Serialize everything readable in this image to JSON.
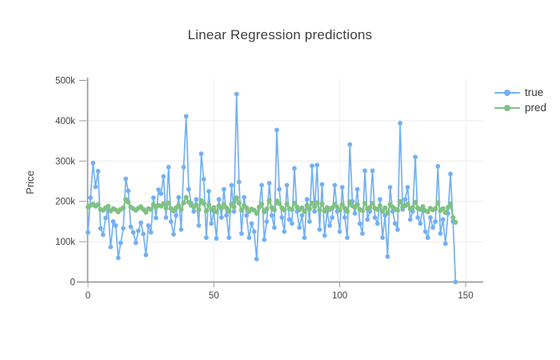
{
  "title": "Linear Regression predictions",
  "legend": {
    "items": [
      {
        "label": "true",
        "color": "#74b0f3"
      },
      {
        "label": "pred",
        "color": "#80c183"
      }
    ]
  },
  "chart_data": {
    "type": "line",
    "title": "Linear Regression predictions",
    "xlabel": "",
    "ylabel": "Price",
    "x_is_index": true,
    "n_points": 147,
    "xlim": [
      -2,
      157
    ],
    "ylim": [
      0,
      505000
    ],
    "values_unit": "thousands",
    "xticks": [
      0,
      50,
      100,
      150
    ],
    "ytick_values_thousands": [
      0,
      100,
      200,
      300,
      400,
      500
    ],
    "ytick_labels": [
      "0",
      "100k",
      "200k",
      "300k",
      "400k",
      "500k"
    ],
    "grid": true,
    "legend_position": "right",
    "markers": true,
    "series": [
      {
        "name": "true",
        "color": "#74b0f3",
        "values_thousands": [
          123,
          209,
          295,
          236,
          275,
          133,
          117,
          159,
          176,
          87,
          150,
          140,
          60,
          97,
          133,
          256,
          226,
          137,
          123,
          97,
          127,
          147,
          119,
          67,
          140,
          123,
          209,
          159,
          229,
          219,
          262,
          160,
          285,
          150,
          118,
          165,
          210,
          130,
          285,
          411,
          230,
          195,
          175,
          205,
          140,
          318,
          255,
          110,
          225,
          145,
          175,
          108,
          205,
          160,
          230,
          165,
          110,
          240,
          175,
          466,
          248,
          120,
          210,
          165,
          110,
          145,
          125,
          57,
          185,
          240,
          105,
          150,
          245,
          165,
          135,
          377,
          230,
          160,
          125,
          240,
          155,
          145,
          282,
          175,
          135,
          165,
          110,
          205,
          150,
          288,
          175,
          290,
          130,
          242,
          115,
          175,
          140,
          160,
          240,
          175,
          125,
          235,
          160,
          110,
          341,
          200,
          170,
          230,
          145,
          120,
          276,
          155,
          175,
          276,
          160,
          145,
          205,
          110,
          165,
          63,
          235,
          175,
          145,
          130,
          394,
          180,
          205,
          235,
          155,
          175,
          310,
          160,
          145,
          185,
          125,
          110,
          160,
          135,
          150,
          287,
          120,
          155,
          95,
          170,
          268,
          150,
          0
        ]
      },
      {
        "name": "pred",
        "color": "#80c183",
        "values_thousands": [
          186,
          190,
          193,
          188,
          192,
          180,
          178,
          184,
          188,
          176,
          182,
          179,
          174,
          180,
          184,
          205,
          198,
          186,
          182,
          178,
          183,
          187,
          180,
          173,
          182,
          180,
          192,
          186,
          190,
          188,
          194,
          183,
          196,
          182,
          176,
          184,
          190,
          180,
          196,
          210,
          198,
          190,
          186,
          191,
          179,
          202,
          195,
          176,
          191,
          180,
          185,
          174,
          189,
          183,
          192,
          184,
          175,
          193,
          186,
          209,
          196,
          178,
          190,
          184,
          175,
          181,
          178,
          170,
          186,
          193,
          174,
          181,
          203,
          185,
          179,
          201,
          194,
          184,
          178,
          193,
          182,
          180,
          196,
          186,
          179,
          184,
          175,
          190,
          181,
          196,
          186,
          197,
          178,
          194,
          176,
          185,
          180,
          184,
          193,
          186,
          178,
          192,
          183,
          175,
          199,
          189,
          185,
          192,
          180,
          177,
          195,
          182,
          185,
          195,
          183,
          180,
          189,
          175,
          184,
          171,
          192,
          186,
          181,
          178,
          200,
          186,
          189,
          193,
          182,
          185,
          198,
          183,
          180,
          187,
          177,
          174,
          183,
          179,
          182,
          197,
          177,
          182,
          172,
          185,
          194,
          160,
          148
        ]
      }
    ]
  }
}
